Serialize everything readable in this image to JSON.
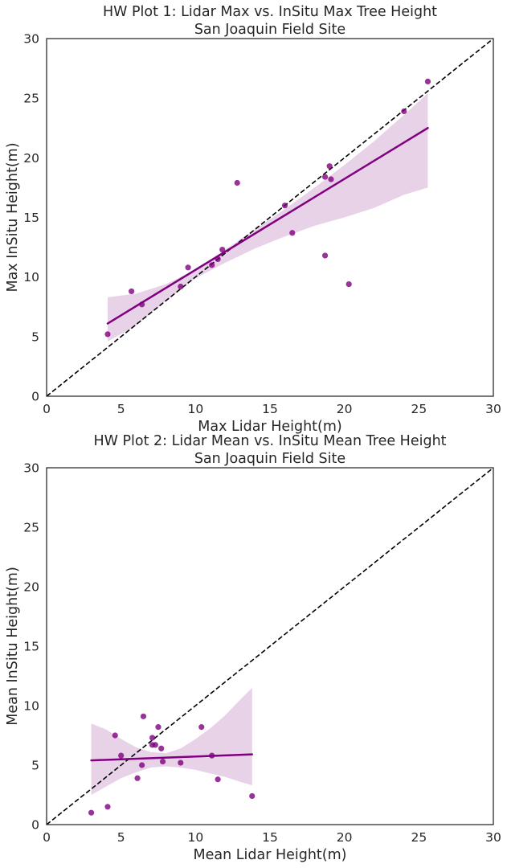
{
  "chart_data": [
    {
      "type": "scatter",
      "title": [
        "HW Plot 1: Lidar Max vs. InSitu Max Tree Height",
        "San Joaquin Field Site"
      ],
      "xlabel": "Max Lidar Height(m)",
      "ylabel": "Max InSitu Height(m)",
      "xlim": [
        0,
        30
      ],
      "ylim": [
        0,
        30
      ],
      "xticks": [
        "0",
        "5",
        "10",
        "15",
        "20",
        "25",
        "30"
      ],
      "yticks": [
        "0",
        "5",
        "10",
        "15",
        "20",
        "25",
        "30"
      ],
      "grid": false,
      "point_color": "#800080",
      "ci_color": "#e8d2e8",
      "reference_line": {
        "style": "dashed",
        "color": "#000000",
        "from": [
          0,
          0
        ],
        "to": [
          30,
          30
        ]
      },
      "regression": {
        "x": [
          4.1,
          25.6
        ],
        "y": [
          6.1,
          22.5
        ]
      },
      "ci_band": {
        "x": [
          4.1,
          6.0,
          8.0,
          10.0,
          12.0,
          14.0,
          16.0,
          18.0,
          20.0,
          22.0,
          24.0,
          25.6
        ],
        "lower": [
          4.6,
          5.9,
          8.0,
          9.9,
          11.2,
          12.4,
          13.4,
          14.3,
          15.0,
          15.8,
          16.9,
          17.5
        ],
        "upper": [
          8.3,
          8.6,
          9.4,
          10.6,
          12.3,
          14.0,
          15.7,
          17.5,
          19.4,
          21.4,
          23.6,
          25.4
        ]
      },
      "points": [
        {
          "x": 4.1,
          "y": 5.2
        },
        {
          "x": 5.7,
          "y": 8.8
        },
        {
          "x": 6.4,
          "y": 7.7
        },
        {
          "x": 9.0,
          "y": 9.2
        },
        {
          "x": 9.5,
          "y": 10.8
        },
        {
          "x": 11.1,
          "y": 11.0
        },
        {
          "x": 11.5,
          "y": 11.5
        },
        {
          "x": 11.8,
          "y": 12.3
        },
        {
          "x": 12.8,
          "y": 17.9
        },
        {
          "x": 16.0,
          "y": 16.0
        },
        {
          "x": 16.5,
          "y": 13.7
        },
        {
          "x": 18.7,
          "y": 11.8
        },
        {
          "x": 18.7,
          "y": 18.4
        },
        {
          "x": 19.0,
          "y": 19.3
        },
        {
          "x": 19.1,
          "y": 18.2
        },
        {
          "x": 20.3,
          "y": 9.4
        },
        {
          "x": 24.0,
          "y": 23.9
        },
        {
          "x": 25.6,
          "y": 26.4
        }
      ]
    },
    {
      "type": "scatter",
      "title": [
        "HW Plot 2: Lidar Mean vs. InSitu Mean Tree Height",
        "San Joaquin Field Site"
      ],
      "xlabel": "Mean Lidar Height(m)",
      "ylabel": "Mean InSitu Height(m)",
      "xlim": [
        0,
        30
      ],
      "ylim": [
        0,
        30
      ],
      "xticks": [
        "0",
        "5",
        "10",
        "15",
        "20",
        "25",
        "30"
      ],
      "yticks": [
        "0",
        "5",
        "10",
        "15",
        "20",
        "25",
        "30"
      ],
      "grid": false,
      "point_color": "#800080",
      "ci_color": "#e8d2e8",
      "reference_line": {
        "style": "dashed",
        "color": "#000000",
        "from": [
          0,
          0
        ],
        "to": [
          30,
          30
        ]
      },
      "regression": {
        "x": [
          3.0,
          13.8
        ],
        "y": [
          5.4,
          5.9
        ]
      },
      "ci_band": {
        "x": [
          3.0,
          4.0,
          5.0,
          6.0,
          7.0,
          8.0,
          9.0,
          10.0,
          11.0,
          12.0,
          13.0,
          13.8
        ],
        "lower": [
          2.5,
          3.2,
          3.9,
          4.4,
          4.8,
          4.9,
          4.8,
          4.6,
          4.3,
          4.0,
          3.6,
          3.3
        ],
        "upper": [
          8.5,
          8.0,
          7.2,
          6.5,
          6.1,
          6.0,
          6.4,
          7.2,
          8.1,
          9.2,
          10.5,
          11.5
        ]
      },
      "points": [
        {
          "x": 3.0,
          "y": 1.0
        },
        {
          "x": 4.1,
          "y": 1.5
        },
        {
          "x": 4.6,
          "y": 7.5
        },
        {
          "x": 5.0,
          "y": 5.8
        },
        {
          "x": 6.1,
          "y": 3.9
        },
        {
          "x": 6.4,
          "y": 5.0
        },
        {
          "x": 6.5,
          "y": 9.1
        },
        {
          "x": 7.1,
          "y": 7.3
        },
        {
          "x": 7.1,
          "y": 6.7
        },
        {
          "x": 7.3,
          "y": 6.7
        },
        {
          "x": 7.5,
          "y": 8.2
        },
        {
          "x": 7.7,
          "y": 6.4
        },
        {
          "x": 7.8,
          "y": 5.3
        },
        {
          "x": 9.0,
          "y": 5.2
        },
        {
          "x": 10.4,
          "y": 8.2
        },
        {
          "x": 11.1,
          "y": 5.8
        },
        {
          "x": 11.5,
          "y": 3.8
        },
        {
          "x": 13.8,
          "y": 2.4
        }
      ]
    }
  ]
}
